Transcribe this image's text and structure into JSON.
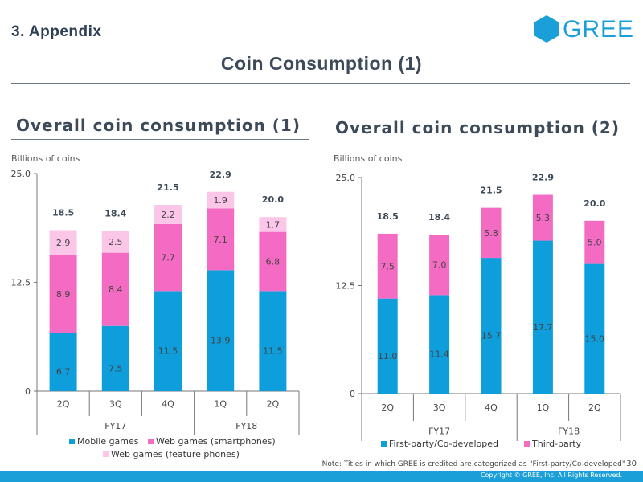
{
  "header": {
    "section": "3. Appendix",
    "logo_text": "GREE",
    "title": "Coin Consumption (1)"
  },
  "colors": {
    "mobile": "#0e9edc",
    "smartphone": "#f46bc3",
    "feature": "#fbc6e8",
    "first_party": "#0e9edc",
    "third_party": "#f46bc3",
    "brand": "#1a9fd9"
  },
  "chart_data": [
    {
      "type": "bar",
      "stacked": true,
      "title": "Overall coin consumption (1)",
      "unit_label": "Billions of coins",
      "categories": [
        "2Q",
        "3Q",
        "4Q",
        "1Q",
        "2Q"
      ],
      "groups": [
        {
          "label": "FY17",
          "count": 3
        },
        {
          "label": "FY18",
          "count": 2
        }
      ],
      "series": [
        {
          "name": "Mobile games",
          "values": [
            6.7,
            7.5,
            11.5,
            13.9,
            11.5
          ],
          "color": "#0e9edc"
        },
        {
          "name": "Web games (smartphones)",
          "values": [
            8.9,
            8.4,
            7.7,
            7.1,
            6.8
          ],
          "color": "#f46bc3"
        },
        {
          "name": "Web games (feature phones)",
          "values": [
            2.9,
            2.5,
            2.2,
            1.9,
            1.7
          ],
          "color": "#fbc6e8"
        }
      ],
      "totals": [
        18.5,
        18.4,
        21.5,
        22.9,
        20.0
      ],
      "ylim": [
        0,
        25
      ],
      "yticks": [
        "0",
        "12.5",
        "25.0"
      ],
      "legend": "bottom"
    },
    {
      "type": "bar",
      "stacked": true,
      "title": "Overall coin consumption (2)",
      "unit_label": "Billions of coins",
      "categories": [
        "2Q",
        "3Q",
        "4Q",
        "1Q",
        "2Q"
      ],
      "groups": [
        {
          "label": "FY17",
          "count": 3
        },
        {
          "label": "FY18",
          "count": 2
        }
      ],
      "series": [
        {
          "name": "First-party/Co-developed",
          "values": [
            11.0,
            11.4,
            15.7,
            17.7,
            15.0
          ],
          "color": "#0e9edc"
        },
        {
          "name": "Third-party",
          "values": [
            7.5,
            7.0,
            5.8,
            5.3,
            5.0
          ],
          "color": "#f46bc3"
        }
      ],
      "totals": [
        18.5,
        18.4,
        21.5,
        22.9,
        20.0
      ],
      "ylim": [
        0,
        25
      ],
      "yticks": [
        "0",
        "12.5",
        "25.0"
      ],
      "legend": "bottom"
    }
  ],
  "footer": {
    "note": "Note: Titles in which GREE is credited are categorized as \"First-party/Co-developed\"",
    "page_number": "30",
    "copyright": "Copyright © GREE, Inc. All Rights Reserved."
  }
}
